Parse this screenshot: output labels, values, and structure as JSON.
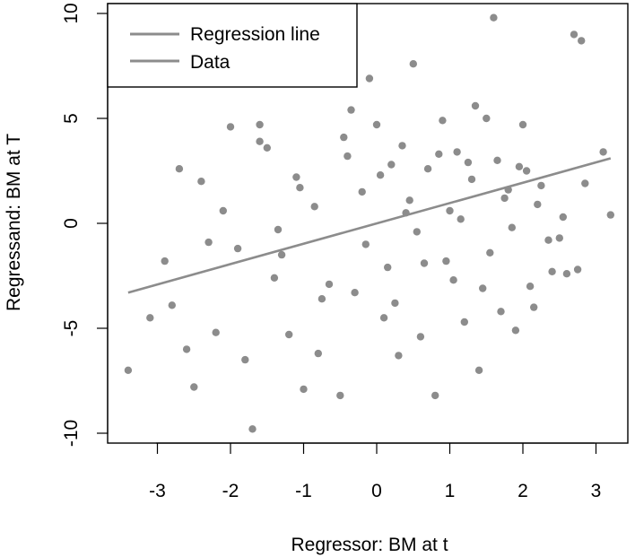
{
  "chart_data": {
    "type": "scatter",
    "title": "",
    "xlabel": "Regressor: BM at t",
    "ylabel": "Regressand: BM at T",
    "xlim": [
      -3.5,
      3.3
    ],
    "ylim": [
      -10.5,
      10.2
    ],
    "xticks": [
      -3,
      -2,
      -1,
      0,
      1,
      2,
      3
    ],
    "yticks": [
      -10,
      -5,
      0,
      5,
      10
    ],
    "grid": false,
    "legend_position": "top-left",
    "point_color": "#8c8c8c",
    "line_color": "#8c8c8c",
    "series": [
      {
        "name": "Regression line",
        "kind": "line",
        "x": [
          -3.4,
          3.2
        ],
        "y": [
          -3.3,
          3.1
        ]
      },
      {
        "name": "Data",
        "kind": "points",
        "x": [
          -3.4,
          -3.1,
          -2.8,
          -2.7,
          -2.6,
          -2.5,
          -2.4,
          -2.3,
          -2.2,
          -1.8,
          -1.7,
          -1.6,
          -1.5,
          -1.4,
          -1.2,
          -1.1,
          -1.0,
          -0.9,
          -0.8,
          -0.7,
          -0.6,
          -0.5,
          -0.4,
          -0.3,
          -0.2,
          -0.1,
          0.0,
          0.1,
          0.2,
          0.3,
          0.4,
          0.5,
          0.6,
          0.7,
          0.8,
          0.9,
          1.0,
          1.1,
          1.2,
          1.3,
          1.4,
          1.5,
          1.6,
          1.7,
          1.8,
          1.9,
          2.0,
          2.1,
          2.2,
          2.4,
          2.5,
          2.6,
          2.7,
          2.8,
          3.1,
          3.2,
          -2.0,
          -1.9,
          -1.3,
          -0.85,
          -0.65,
          -0.35,
          0.15,
          0.35,
          0.55,
          0.95,
          1.25,
          1.45,
          1.75,
          2.05,
          2.35,
          -2.9,
          -2.1,
          -1.6,
          -1.35,
          -1.05,
          -0.75,
          -0.45,
          -0.15,
          0.05,
          0.25,
          0.45,
          0.65,
          0.85,
          1.05,
          1.15,
          1.35,
          1.55,
          1.65,
          1.85,
          1.95,
          2.15,
          2.25,
          2.55,
          2.75,
          2.85
        ],
        "y": [
          -7.0,
          -4.5,
          -3.9,
          2.6,
          -6.0,
          -7.8,
          2.0,
          -0.9,
          -5.2,
          -6.5,
          -9.8,
          4.7,
          3.6,
          -2.6,
          -5.3,
          2.2,
          -7.9,
          7.5,
          -6.2,
          8.3,
          6.7,
          -8.2,
          3.2,
          -3.3,
          1.5,
          6.9,
          4.7,
          -4.5,
          2.8,
          -6.3,
          0.5,
          7.6,
          -5.4,
          2.6,
          -8.2,
          4.9,
          0.6,
          3.4,
          -4.7,
          2.1,
          -7.0,
          5.0,
          9.8,
          -4.2,
          1.6,
          -5.1,
          4.7,
          -3.0,
          0.9,
          -2.3,
          -0.7,
          -2.4,
          9.0,
          8.7,
          3.4,
          0.4,
          4.6,
          -1.2,
          -1.5,
          0.8,
          -2.9,
          5.4,
          -2.1,
          3.7,
          -0.4,
          -1.8,
          2.9,
          -3.1,
          1.2,
          2.5,
          -0.8,
          -1.8,
          0.6,
          3.9,
          -0.3,
          1.7,
          -3.6,
          4.1,
          -1.0,
          2.3,
          -3.8,
          1.1,
          -1.9,
          3.3,
          -2.7,
          0.2,
          5.6,
          -1.4,
          3.0,
          -0.2,
          2.7,
          -4.0,
          1.8,
          0.3,
          -2.2,
          1.9
        ]
      }
    ]
  }
}
